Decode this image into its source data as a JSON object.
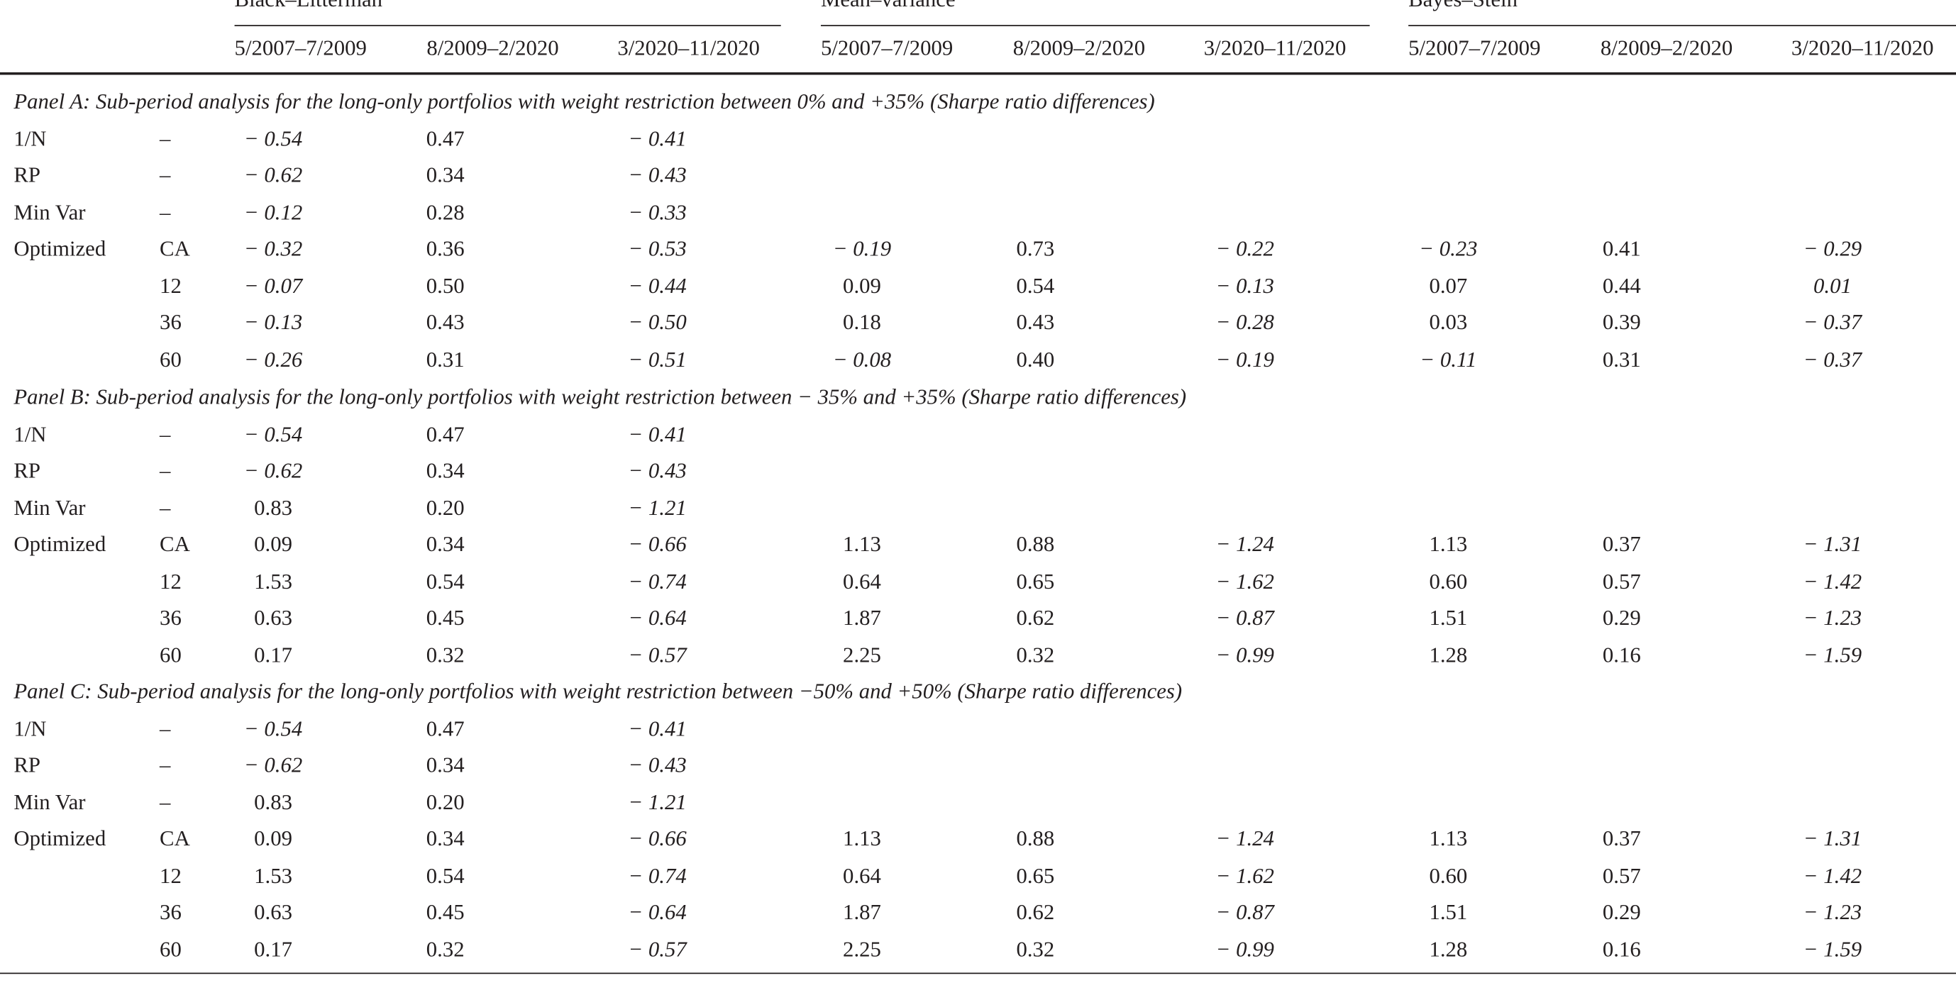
{
  "header": {
    "groups": [
      "Black–Litterman",
      "Mean–variance",
      "Bayes–Stein"
    ],
    "periods": [
      "5/2007–7/2009",
      "8/2009–2/2020",
      "3/2020–11/2020"
    ]
  },
  "panels": [
    {
      "title": "Panel A: Sub-period analysis for the long-only portfolios with weight restriction between 0% and +35% (Sharpe ratio differences)",
      "rows": [
        {
          "label": "1/N",
          "sub": "–",
          "bl": [
            "− 0.54",
            "0.47",
            "− 0.41"
          ],
          "mv": [
            "",
            "",
            ""
          ],
          "bs": [
            "",
            "",
            ""
          ]
        },
        {
          "label": "RP",
          "sub": "–",
          "bl": [
            "− 0.62",
            "0.34",
            "− 0.43"
          ],
          "mv": [
            "",
            "",
            ""
          ],
          "bs": [
            "",
            "",
            ""
          ]
        },
        {
          "label": "Min Var",
          "sub": "–",
          "bl": [
            "− 0.12",
            "0.28",
            "− 0.33"
          ],
          "mv": [
            "",
            "",
            ""
          ],
          "bs": [
            "",
            "",
            ""
          ]
        },
        {
          "label": "Optimized",
          "sub": "CA",
          "bl": [
            "− 0.32",
            "0.36",
            "− 0.53"
          ],
          "mv": [
            "− 0.19",
            "0.73",
            "− 0.22"
          ],
          "bs": [
            "− 0.23",
            "0.41",
            "− 0.29"
          ]
        },
        {
          "label": "",
          "sub": "12",
          "bl": [
            "− 0.07",
            "0.50",
            "− 0.44"
          ],
          "mv": [
            "0.09",
            "0.54",
            "− 0.13"
          ],
          "bs": [
            "0.07",
            "0.44",
            "0.01"
          ]
        },
        {
          "label": "",
          "sub": "36",
          "bl": [
            "− 0.13",
            "0.43",
            "− 0.50"
          ],
          "mv": [
            "0.18",
            "0.43",
            "− 0.28"
          ],
          "bs": [
            "0.03",
            "0.39",
            "− 0.37"
          ]
        },
        {
          "label": "",
          "sub": "60",
          "bl": [
            "− 0.26",
            "0.31",
            "− 0.51"
          ],
          "mv": [
            "− 0.08",
            "0.40",
            "− 0.19"
          ],
          "bs": [
            "− 0.11",
            "0.31",
            "− 0.37"
          ]
        }
      ]
    },
    {
      "title": "Panel B: Sub-period analysis for the long-only portfolios with weight restriction between − 35% and +35% (Sharpe ratio differences)",
      "rows": [
        {
          "label": "1/N",
          "sub": "–",
          "bl": [
            "− 0.54",
            "0.47",
            "− 0.41"
          ],
          "mv": [
            "",
            "",
            ""
          ],
          "bs": [
            "",
            "",
            ""
          ]
        },
        {
          "label": "RP",
          "sub": "–",
          "bl": [
            "− 0.62",
            "0.34",
            "− 0.43"
          ],
          "mv": [
            "",
            "",
            ""
          ],
          "bs": [
            "",
            "",
            ""
          ]
        },
        {
          "label": "Min Var",
          "sub": "–",
          "bl": [
            "0.83",
            "0.20",
            "− 1.21"
          ],
          "mv": [
            "",
            "",
            ""
          ],
          "bs": [
            "",
            "",
            ""
          ]
        },
        {
          "label": "Optimized",
          "sub": "CA",
          "bl": [
            "0.09",
            "0.34",
            "− 0.66"
          ],
          "mv": [
            "1.13",
            "0.88",
            "− 1.24"
          ],
          "bs": [
            "1.13",
            "0.37",
            "− 1.31"
          ]
        },
        {
          "label": "",
          "sub": "12",
          "bl": [
            "1.53",
            "0.54",
            "− 0.74"
          ],
          "mv": [
            "0.64",
            "0.65",
            "− 1.62"
          ],
          "bs": [
            "0.60",
            "0.57",
            "− 1.42"
          ]
        },
        {
          "label": "",
          "sub": "36",
          "bl": [
            "0.63",
            "0.45",
            "− 0.64"
          ],
          "mv": [
            "1.87",
            "0.62",
            "− 0.87"
          ],
          "bs": [
            "1.51",
            "0.29",
            "− 1.23"
          ]
        },
        {
          "label": "",
          "sub": "60",
          "bl": [
            "0.17",
            "0.32",
            "− 0.57"
          ],
          "mv": [
            "2.25",
            "0.32",
            "− 0.99"
          ],
          "bs": [
            "1.28",
            "0.16",
            "− 1.59"
          ]
        }
      ]
    },
    {
      "title": "Panel C: Sub-period analysis for the long-only portfolios with weight restriction between −50% and +50% (Sharpe ratio differences)",
      "rows": [
        {
          "label": "1/N",
          "sub": "–",
          "bl": [
            "− 0.54",
            "0.47",
            "− 0.41"
          ],
          "mv": [
            "",
            "",
            ""
          ],
          "bs": [
            "",
            "",
            ""
          ]
        },
        {
          "label": "RP",
          "sub": "–",
          "bl": [
            "− 0.62",
            "0.34",
            "− 0.43"
          ],
          "mv": [
            "",
            "",
            ""
          ],
          "bs": [
            "",
            "",
            ""
          ]
        },
        {
          "label": "Min Var",
          "sub": "–",
          "bl": [
            "0.83",
            "0.20",
            "− 1.21"
          ],
          "mv": [
            "",
            "",
            ""
          ],
          "bs": [
            "",
            "",
            ""
          ]
        },
        {
          "label": "Optimized",
          "sub": "CA",
          "bl": [
            "0.09",
            "0.34",
            "− 0.66"
          ],
          "mv": [
            "1.13",
            "0.88",
            "− 1.24"
          ],
          "bs": [
            "1.13",
            "0.37",
            "− 1.31"
          ]
        },
        {
          "label": "",
          "sub": "12",
          "bl": [
            "1.53",
            "0.54",
            "− 0.74"
          ],
          "mv": [
            "0.64",
            "0.65",
            "− 1.62"
          ],
          "bs": [
            "0.60",
            "0.57",
            "− 1.42"
          ]
        },
        {
          "label": "",
          "sub": "36",
          "bl": [
            "0.63",
            "0.45",
            "− 0.64"
          ],
          "mv": [
            "1.87",
            "0.62",
            "− 0.87"
          ],
          "bs": [
            "1.51",
            "0.29",
            "− 1.23"
          ]
        },
        {
          "label": "",
          "sub": "60",
          "bl": [
            "0.17",
            "0.32",
            "− 0.57"
          ],
          "mv": [
            "2.25",
            "0.32",
            "− 0.99"
          ],
          "bs": [
            "1.28",
            "0.16",
            "− 1.59"
          ]
        }
      ]
    }
  ]
}
